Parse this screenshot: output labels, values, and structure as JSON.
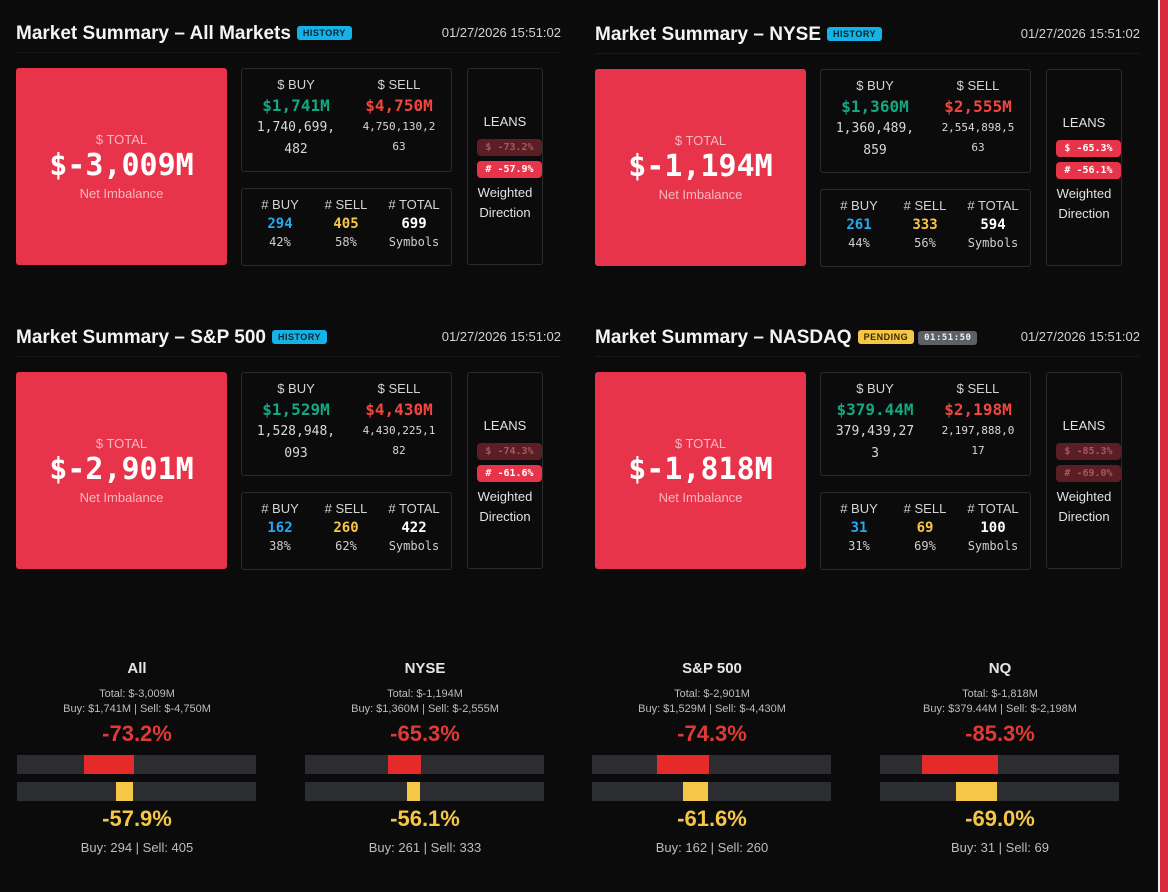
{
  "panels": [
    {
      "title": "Market Summary – All Markets",
      "badge": "HISTORY",
      "timestamp": "01/27/2026 15:51:02",
      "total_label": "$ TOTAL",
      "total_value": "$-3,009M",
      "total_sub": "Net Imbalance",
      "buy_label": "$ BUY",
      "sell_label": "$ SELL",
      "buy_value": "$1,741M",
      "sell_value": "$4,750M",
      "buy_raw_1": "1,740,699,",
      "buy_raw_2": "482",
      "sell_raw_1": "4,750,130,2",
      "sell_raw_2": "63",
      "count_buy_label": "# BUY",
      "count_sell_label": "# SELL",
      "count_total_label": "# TOTAL",
      "count_buy": "294",
      "count_sell": "405",
      "count_total": "699",
      "pct_buy": "42%",
      "pct_sell": "58%",
      "symbols_label": "Symbols",
      "leans_title": "LEANS",
      "lean_dollar": "$ -73.2%",
      "lean_count": "# -57.9%",
      "leans_sub_1": "Weighted",
      "leans_sub_2": "Direction"
    },
    {
      "title": "Market Summary – NYSE",
      "badge": "HISTORY",
      "timestamp": "01/27/2026 15:51:02",
      "total_label": "$ TOTAL",
      "total_value": "$-1,194M",
      "total_sub": "Net Imbalance",
      "buy_label": "$ BUY",
      "sell_label": "$ SELL",
      "buy_value": "$1,360M",
      "sell_value": "$2,555M",
      "buy_raw_1": "1,360,489,",
      "buy_raw_2": "859",
      "sell_raw_1": "2,554,898,5",
      "sell_raw_2": "63",
      "count_buy_label": "# BUY",
      "count_sell_label": "# SELL",
      "count_total_label": "# TOTAL",
      "count_buy": "261",
      "count_sell": "333",
      "count_total": "594",
      "pct_buy": "44%",
      "pct_sell": "56%",
      "symbols_label": "Symbols",
      "leans_title": "LEANS",
      "lean_dollar": "$ -65.3%",
      "lean_count": "# -56.1%",
      "leans_sub_1": "Weighted",
      "leans_sub_2": "Direction"
    },
    {
      "title": "Market Summary – S&P 500",
      "badge": "HISTORY",
      "timestamp": "01/27/2026 15:51:02",
      "total_label": "$ TOTAL",
      "total_value": "$-2,901M",
      "total_sub": "Net Imbalance",
      "buy_label": "$ BUY",
      "sell_label": "$ SELL",
      "buy_value": "$1,529M",
      "sell_value": "$4,430M",
      "buy_raw_1": "1,528,948,",
      "buy_raw_2": "093",
      "sell_raw_1": "4,430,225,1",
      "sell_raw_2": "82",
      "count_buy_label": "# BUY",
      "count_sell_label": "# SELL",
      "count_total_label": "# TOTAL",
      "count_buy": "162",
      "count_sell": "260",
      "count_total": "422",
      "pct_buy": "38%",
      "pct_sell": "62%",
      "symbols_label": "Symbols",
      "leans_title": "LEANS",
      "lean_dollar": "$ -74.3%",
      "lean_count": "# -61.6%",
      "leans_sub_1": "Weighted",
      "leans_sub_2": "Direction"
    },
    {
      "title": "Market Summary – NASDAQ",
      "badge": "PENDING",
      "timer": "01:51:50",
      "timestamp": "01/27/2026 15:51:02",
      "total_label": "$ TOTAL",
      "total_value": "$-1,818M",
      "total_sub": "Net Imbalance",
      "buy_label": "$ BUY",
      "sell_label": "$ SELL",
      "buy_value": "$379.44M",
      "sell_value": "$2,198M",
      "buy_raw_1": "379,439,27",
      "buy_raw_2": "3",
      "sell_raw_1": "2,197,888,0",
      "sell_raw_2": "17",
      "count_buy_label": "# BUY",
      "count_sell_label": "# SELL",
      "count_total_label": "# TOTAL",
      "count_buy": "31",
      "count_sell": "69",
      "count_total": "100",
      "pct_buy": "31%",
      "pct_sell": "69%",
      "symbols_label": "Symbols",
      "leans_title": "LEANS",
      "lean_dollar": "$ -85.3%",
      "lean_count": "# -69.0%",
      "leans_sub_1": "Weighted",
      "leans_sub_2": "Direction"
    }
  ],
  "summaries": [
    {
      "name": "All",
      "total": "Total: $-3,009M",
      "buy_sell": "Buy: $1,741M | Sell: $-4,750M",
      "dollar_pct": "-73.2%",
      "dollar_lean": -0.732,
      "count_pct": "-57.9%",
      "count_lean": -0.579,
      "counts": "Buy: 294 | Sell: 405"
    },
    {
      "name": "NYSE",
      "total": "Total: $-1,194M",
      "buy_sell": "Buy: $1,360M | Sell: $-2,555M",
      "dollar_pct": "-65.3%",
      "dollar_lean": -0.653,
      "count_pct": "-56.1%",
      "count_lean": -0.561,
      "counts": "Buy: 261 | Sell: 333"
    },
    {
      "name": "S&P 500",
      "total": "Total: $-2,901M",
      "buy_sell": "Buy: $1,529M | Sell: $-4,430M",
      "dollar_pct": "-74.3%",
      "dollar_lean": -0.743,
      "count_pct": "-61.6%",
      "count_lean": -0.616,
      "counts": "Buy: 162 | Sell: 260"
    },
    {
      "name": "NQ",
      "total": "Total: $-1,818M",
      "buy_sell": "Buy: $379.44M | Sell: $-2,198M",
      "dollar_pct": "-85.3%",
      "dollar_lean": -0.853,
      "count_pct": "-69.0%",
      "count_lean": -0.69,
      "counts": "Buy: 31 | Sell: 69"
    }
  ],
  "colors": {
    "total_bg": "#e8344a",
    "buy_green": "#12a882",
    "sell_red": "#f0463e",
    "count_blue": "#25a9f0",
    "count_yellow": "#f6c646",
    "history_badge": "#14b2e6",
    "pending_badge": "#f6c646"
  }
}
